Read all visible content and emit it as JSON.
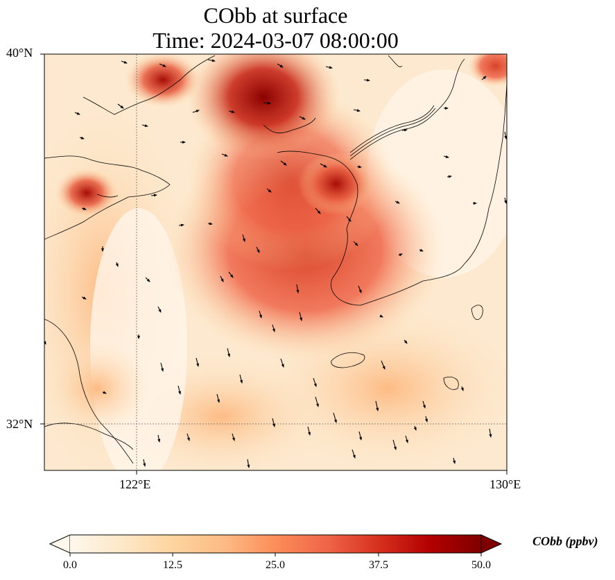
{
  "title": {
    "line1": "CObb at surface",
    "line2": "Time: 2024-03-07 08:00:00"
  },
  "map": {
    "lat_ticks": [
      "40°N",
      "32°N"
    ],
    "lon_ticks": [
      "122°E",
      "130°E"
    ],
    "field": "CObb",
    "units": "ppbv",
    "colormap": "OrRd",
    "colors": [
      "#fff7ec",
      "#fee8c8",
      "#fdd49e",
      "#fdbb84",
      "#fc8d59",
      "#ef6548",
      "#d7301f",
      "#b30000",
      "#7f0000"
    ],
    "hotspots_description_free": true
  },
  "colorbar": {
    "label": "CObb (ppbv)",
    "ticks": [
      "0.0",
      "12.5",
      "25.0",
      "37.5",
      "50.0"
    ],
    "min": 0,
    "max": 50
  }
}
